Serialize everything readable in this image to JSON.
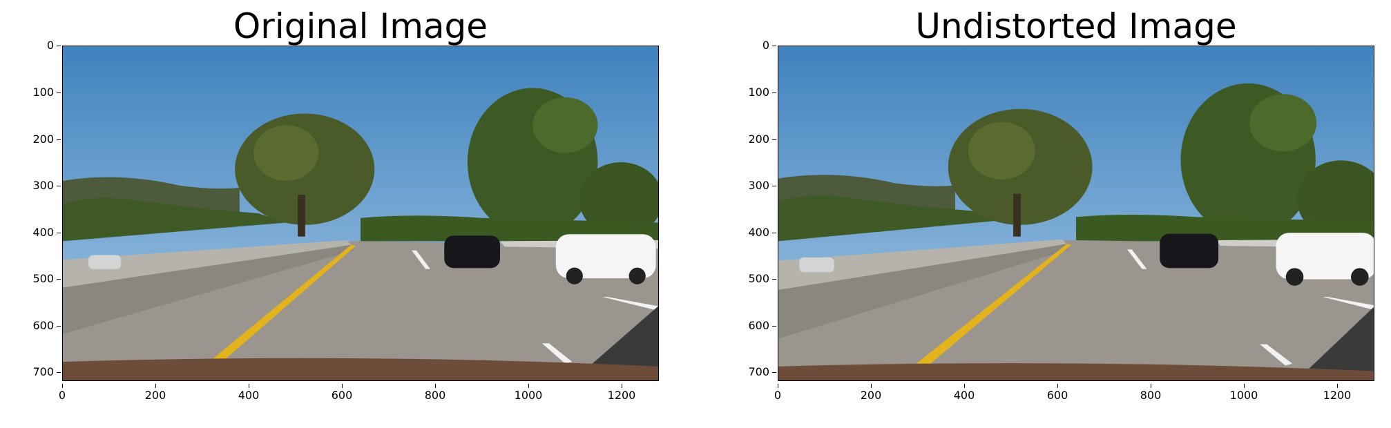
{
  "figure": {
    "panels": [
      {
        "title": "Original Image",
        "y_ticks": [
          "0",
          "100",
          "200",
          "300",
          "400",
          "500",
          "600",
          "700"
        ],
        "x_ticks": [
          "0",
          "200",
          "400",
          "600",
          "800",
          "1000",
          "1200"
        ]
      },
      {
        "title": "Undistorted Image",
        "y_ticks": [
          "0",
          "100",
          "200",
          "300",
          "400",
          "500",
          "600",
          "700"
        ],
        "x_ticks": [
          "0",
          "200",
          "400",
          "600",
          "800",
          "1000",
          "1200"
        ]
      }
    ],
    "image_extent": {
      "width": 1280,
      "height": 720
    },
    "colors": {
      "sky": "#4f8fc6",
      "sky_light": "#8fbbe0",
      "hills": "#4d5a3c",
      "trees": "#3f5a26",
      "road": "#9a958f",
      "barrier": "#b6b3ad",
      "lane_yellow": "#e2b31c",
      "lane_white": "#f2f2f2",
      "car_dark": "#18181c",
      "car_white": "#f5f5f5",
      "hood": "#6e4c3a"
    }
  }
}
